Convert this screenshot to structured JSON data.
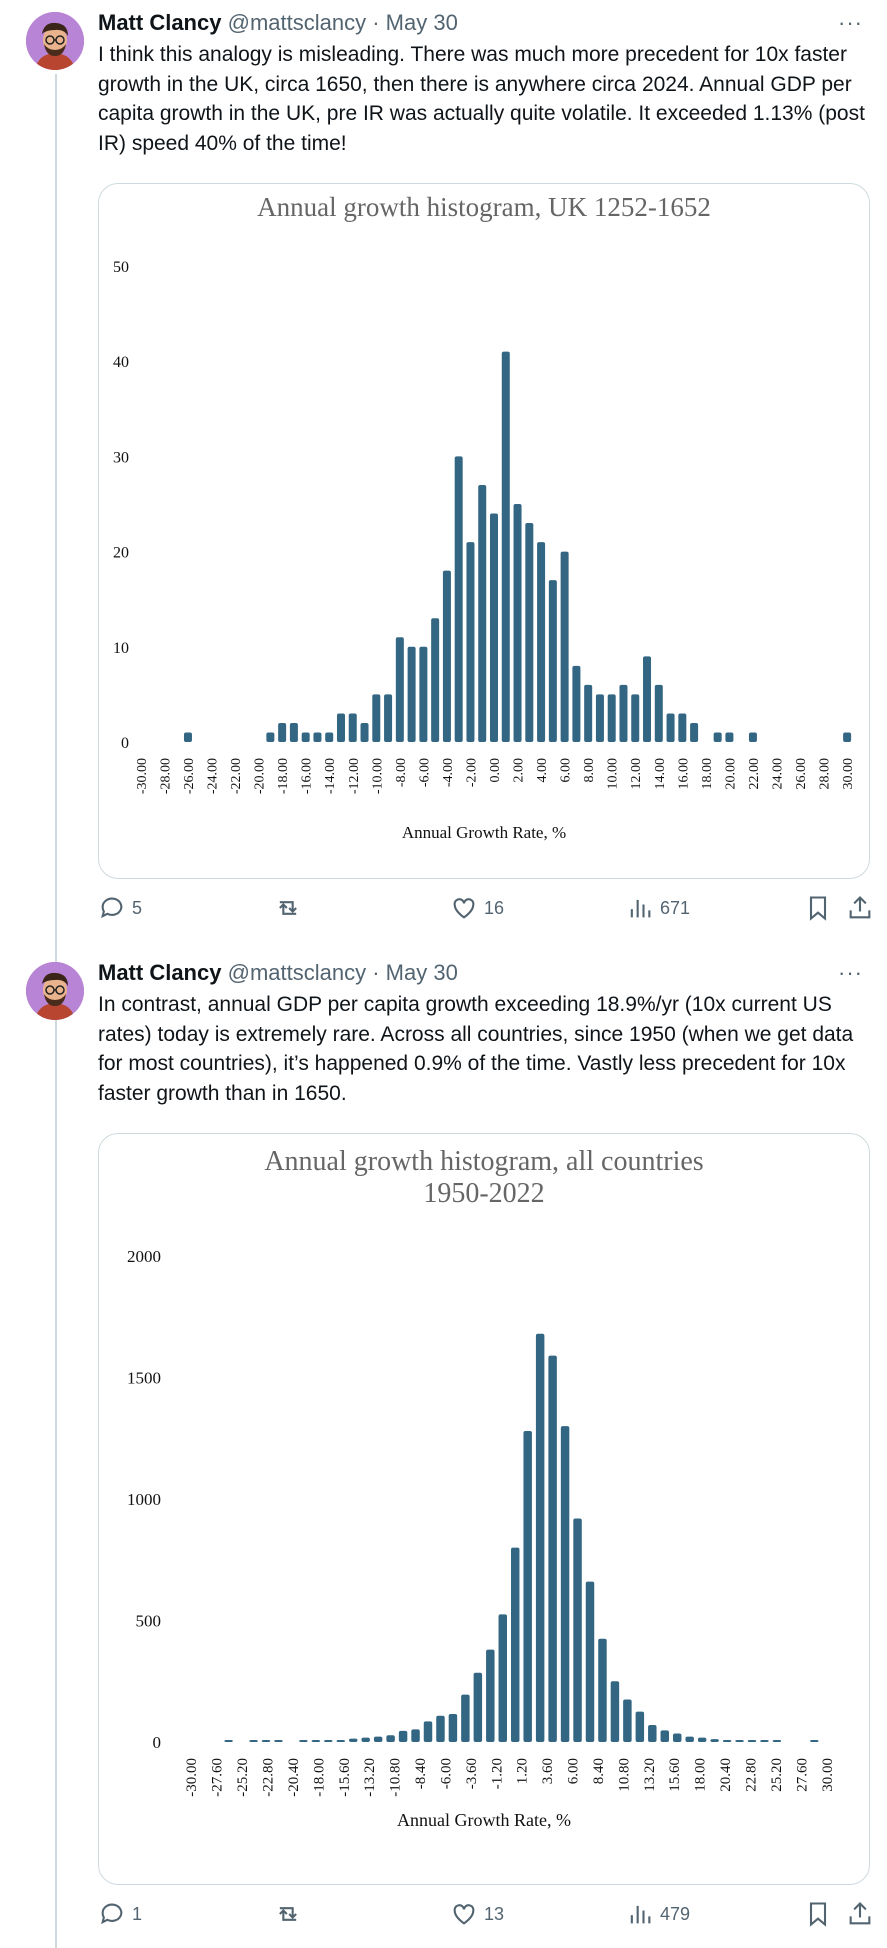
{
  "tweets": [
    {
      "author_name": "Matt Clancy",
      "handle": "@mattsclancy",
      "date": "· May 30",
      "text": "I think this analogy is misleading. There was much more precedent for 10x faster growth in the UK, circa 1650, then there is anywhere circa 2024. Annual GDP per capita growth in the UK, pre IR was actually quite volatile. It exceeded 1.13% (post IR) speed 40% of the time!",
      "more_label": "···",
      "actions": {
        "replies": "5",
        "retweets": "",
        "likes": "16",
        "views": "671"
      }
    },
    {
      "author_name": "Matt Clancy",
      "handle": "@mattsclancy",
      "date": "· May 30",
      "text": "In contrast, annual GDP per capita growth exceeding 18.9%/yr (10x current US rates) today is extremely rare. Across all countries, since 1950 (when we get data for most countries), it’s happened 0.9% of the time. Vastly less precedent for 10x faster growth than in 1650.",
      "more_label": "···",
      "actions": {
        "replies": "1",
        "retweets": "",
        "likes": "13",
        "views": "479"
      }
    }
  ],
  "colors": {
    "bar": "#336683",
    "muted": "#536471",
    "border": "#cfd9de",
    "avatar": "#b884d6"
  },
  "chart_data": [
    {
      "type": "bar",
      "title": "Annual growth histogram, UK 1252-1652",
      "xlabel": "Annual Growth Rate, %",
      "ylabel": "",
      "ylim": [
        0,
        50
      ],
      "yticks": [
        "0",
        "10",
        "20",
        "30",
        "40",
        "50"
      ],
      "x_start": -30,
      "bin_width": 1,
      "tick_labels": [
        "-30.00",
        "-28.00",
        "-26.00",
        "-24.00",
        "-22.00",
        "-20.00",
        "-18.00",
        "-16.00",
        "-14.00",
        "-12.00",
        "-10.00",
        "-8.00",
        "-6.00",
        "-4.00",
        "-2.00",
        "0.00",
        "2.00",
        "4.00",
        "6.00",
        "8.00",
        "10.00",
        "12.00",
        "14.00",
        "16.00",
        "18.00",
        "20.00",
        "22.00",
        "24.00",
        "26.00",
        "28.00",
        "30.00"
      ],
      "values": [
        0,
        0,
        0,
        0,
        1,
        0,
        0,
        0,
        0,
        0,
        0,
        1,
        2,
        2,
        1,
        1,
        1,
        3,
        3,
        2,
        5,
        5,
        11,
        10,
        10,
        13,
        18,
        30,
        21,
        27,
        24,
        41,
        25,
        23,
        21,
        17,
        20,
        8,
        6,
        5,
        5,
        6,
        5,
        9,
        6,
        3,
        3,
        2,
        0,
        1,
        1,
        0,
        1,
        0,
        0,
        0,
        0,
        0,
        0,
        0,
        1
      ],
      "grid": false,
      "legend": "none"
    },
    {
      "type": "bar",
      "title": "Annual growth histogram, all countries",
      "subtitle": "1950-2022",
      "xlabel": "Annual Growth Rate, %",
      "ylabel": "",
      "ylim": [
        0,
        2000
      ],
      "yticks": [
        "0",
        "500",
        "1000",
        "1500",
        "2000"
      ],
      "x_start": -30,
      "bin_width": 1.2,
      "tick_labels": [
        "-30.00",
        "-27.60",
        "-25.20",
        "-22.80",
        "-20.40",
        "-18.00",
        "-15.60",
        "-13.20",
        "-10.80",
        "-8.40",
        "-6.00",
        "-3.60",
        "-1.20",
        "1.20",
        "3.60",
        "6.00",
        "8.40",
        "10.80",
        "13.20",
        "15.60",
        "18.00",
        "20.40",
        "22.80",
        "25.20",
        "27.60",
        "30.00"
      ],
      "values": [
        0,
        0,
        0,
        1,
        0,
        1,
        1,
        1,
        0,
        1,
        3,
        6,
        8,
        14,
        18,
        22,
        28,
        46,
        52,
        85,
        108,
        115,
        195,
        285,
        380,
        525,
        800,
        1280,
        1680,
        1590,
        1300,
        920,
        660,
        425,
        250,
        175,
        125,
        70,
        48,
        35,
        22,
        18,
        12,
        8,
        6,
        3,
        2,
        1,
        0,
        0,
        1,
        0
      ],
      "grid": false,
      "legend": "none"
    }
  ]
}
